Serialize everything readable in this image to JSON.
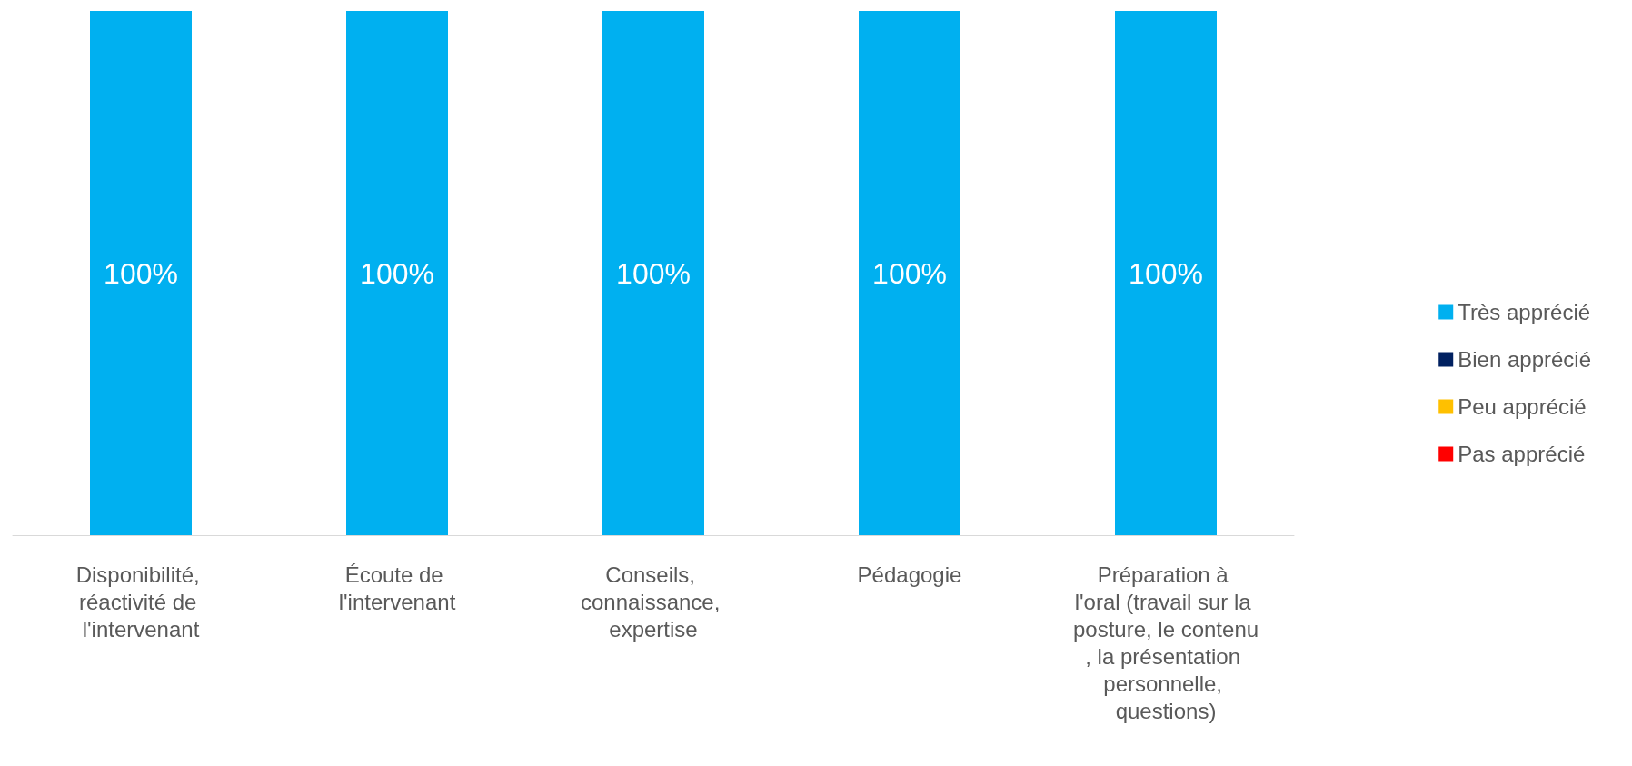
{
  "chart_data": {
    "type": "bar",
    "stacked": true,
    "categories": [
      "Disponibilité, réactivité de l'intervenant",
      "Écoute de l'intervenant",
      "Conseils, connaissance, expertise",
      "Pédagogie",
      "Préparation à l'oral (travail sur la posture, le contenu, la présentation personnelle, questions)"
    ],
    "series": [
      {
        "name": "Très apprécié",
        "color": "#00b0f0",
        "values": [
          100,
          100,
          100,
          100,
          100
        ],
        "value_labels": [
          "100%",
          "100%",
          "100%",
          "100%",
          "100%"
        ]
      },
      {
        "name": "Bien apprécié",
        "color": "#002060",
        "values": [
          0,
          0,
          0,
          0,
          0
        ]
      },
      {
        "name": "Peu apprécié",
        "color": "#ffc000",
        "values": [
          0,
          0,
          0,
          0,
          0
        ]
      },
      {
        "name": "Pas apprécié",
        "color": "#ff0000",
        "values": [
          0,
          0,
          0,
          0,
          0
        ]
      }
    ],
    "ylim": [
      0,
      100
    ],
    "tick_labels": "x",
    "legend": "right"
  }
}
